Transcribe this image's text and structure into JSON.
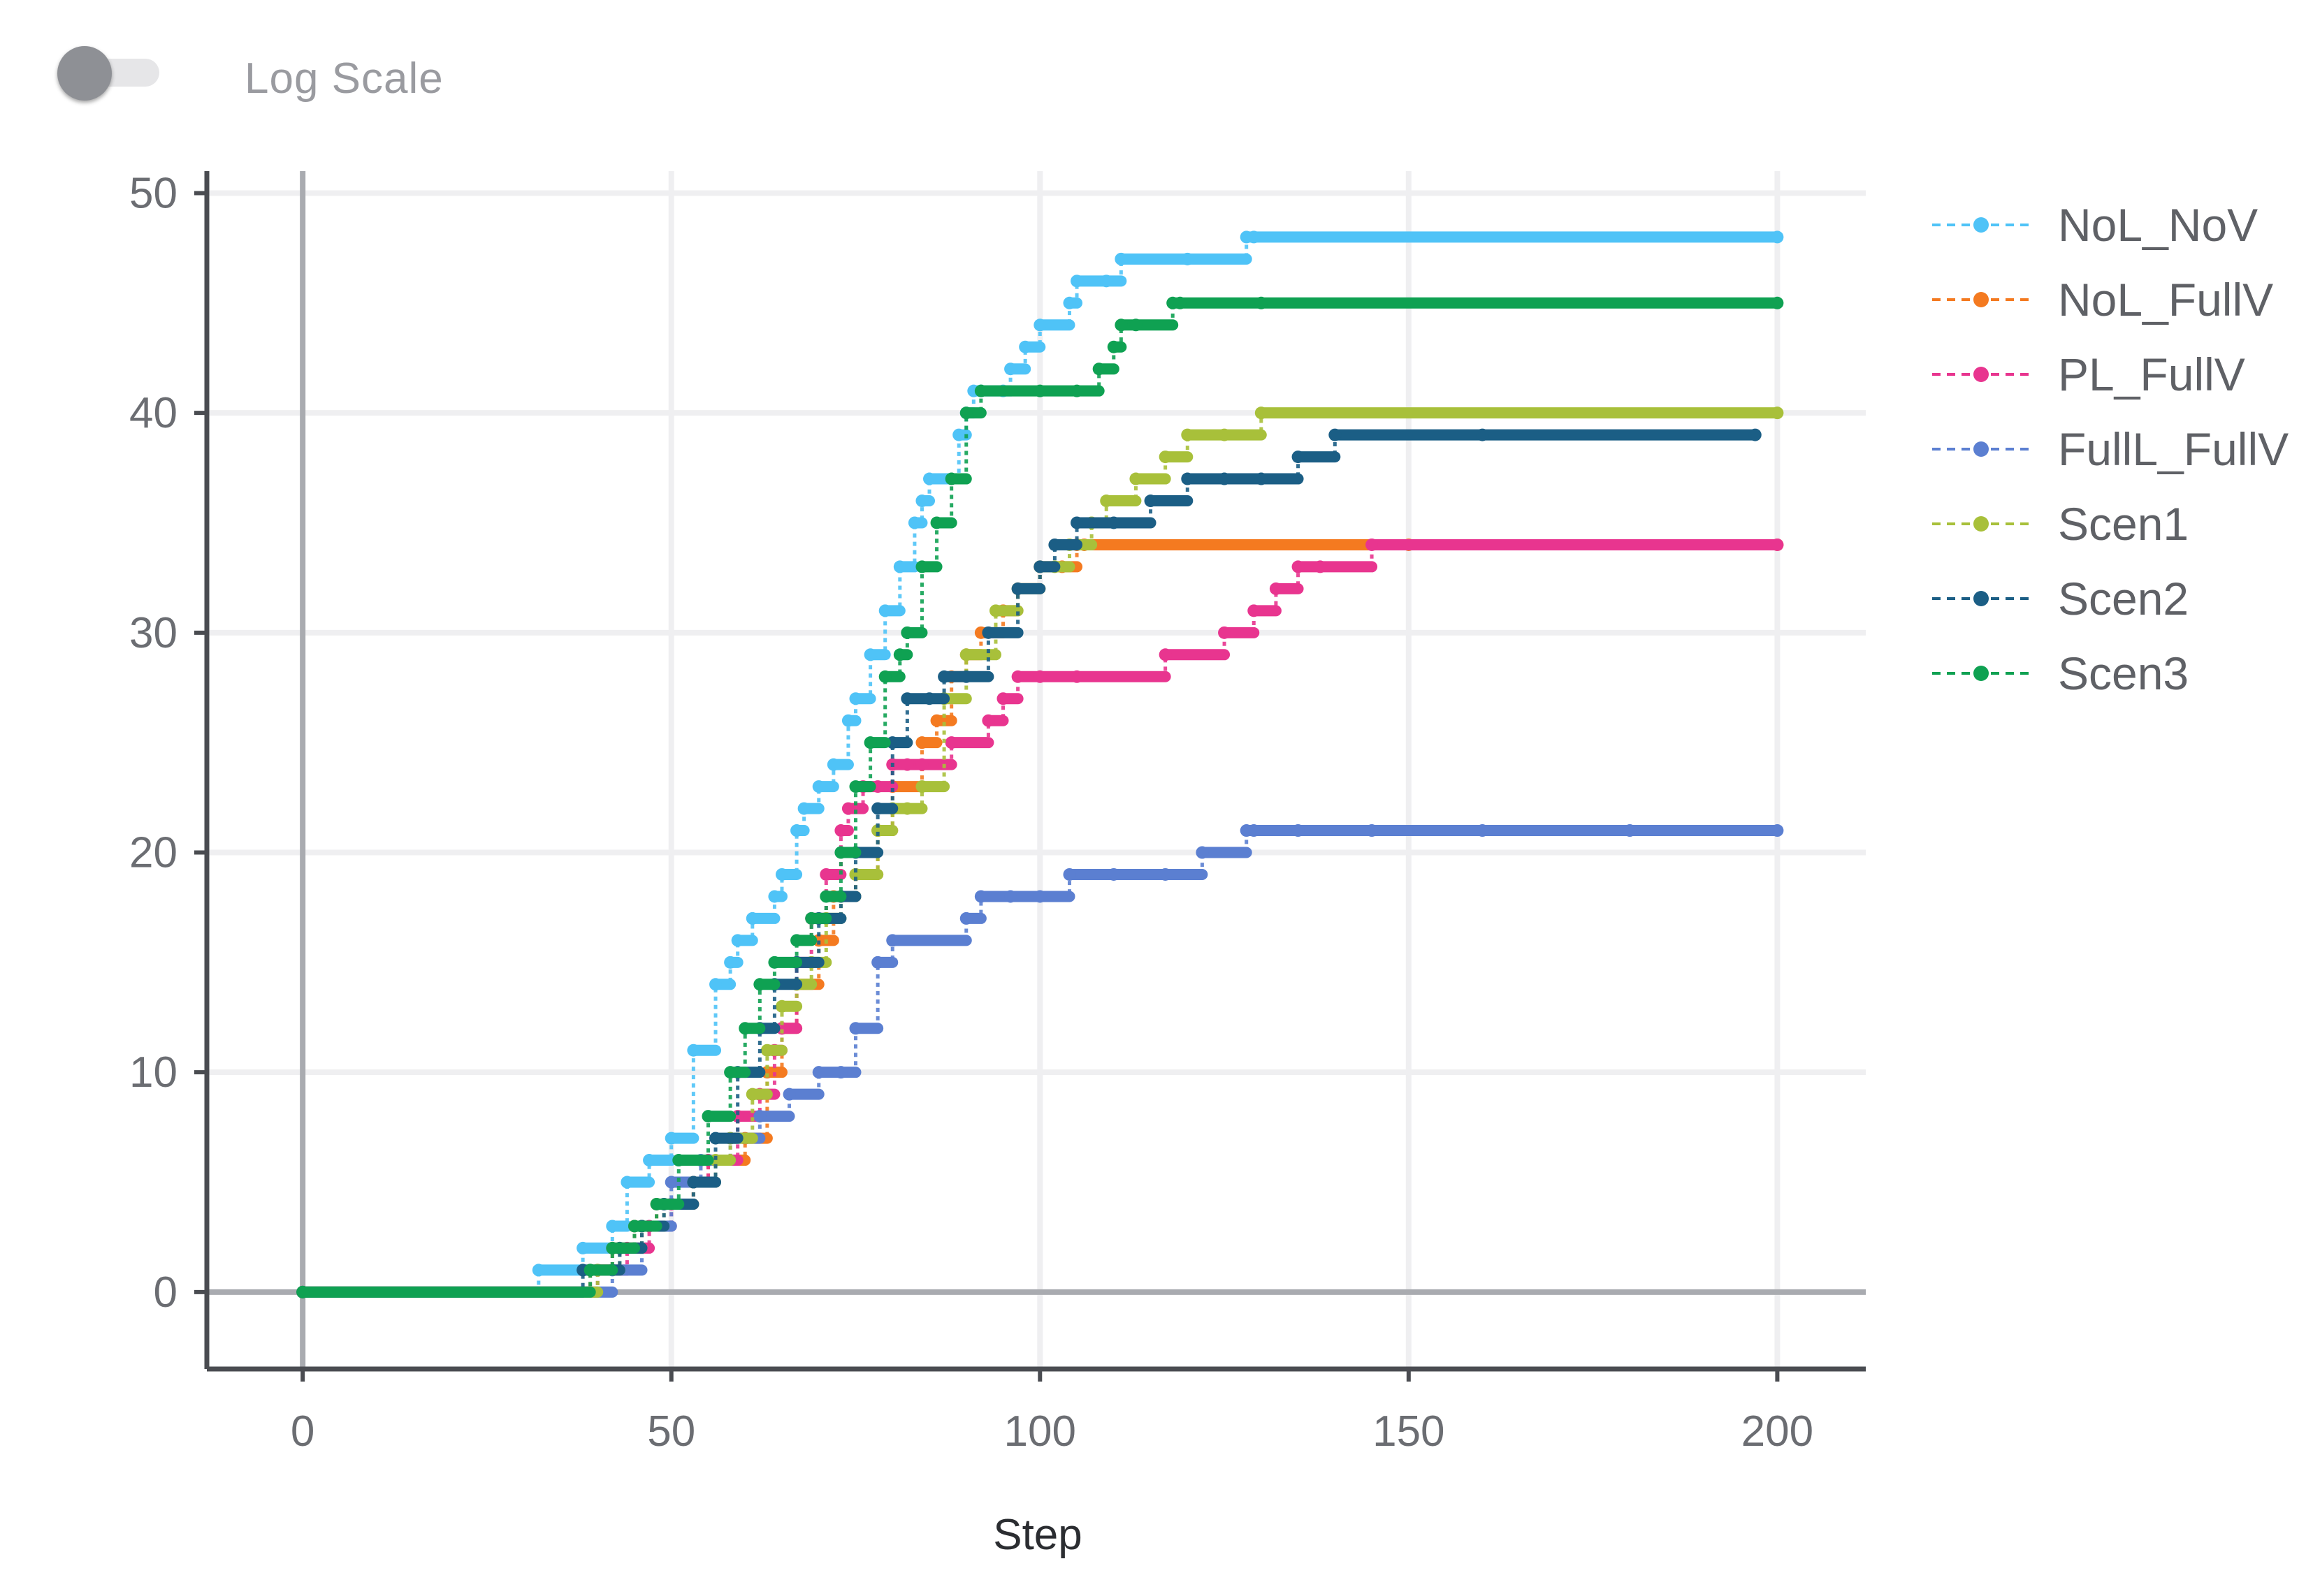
{
  "toggle": {
    "label": "Log Scale",
    "enabled": false
  },
  "chart_data": {
    "type": "line",
    "xlabel": "Step",
    "ylabel": "",
    "xlim": [
      -13,
      212
    ],
    "ylim": [
      -3.5,
      51
    ],
    "xticks": [
      0,
      50,
      100,
      150,
      200
    ],
    "yticks": [
      0,
      10,
      20,
      30,
      40,
      50
    ],
    "grid": true,
    "step": true,
    "legend_position": "right",
    "colors": {
      "grid": "#efeff1",
      "zero_line": "#a9abb0",
      "axis": "#4a4c51"
    },
    "series": [
      {
        "name": "NoL_NoV",
        "color": "#4fc3f7",
        "x": [
          0,
          32,
          38,
          42,
          44,
          47,
          50,
          53,
          56,
          58,
          59,
          61,
          64,
          65,
          67,
          68,
          70,
          72,
          74,
          75,
          77,
          79,
          81,
          83,
          84,
          85,
          89,
          90,
          91,
          92,
          95,
          96,
          98,
          100,
          104,
          105,
          109,
          111,
          120,
          128,
          129,
          200
        ],
        "y": [
          0,
          1,
          2,
          3,
          5,
          6,
          7,
          11,
          14,
          15,
          16,
          17,
          18,
          19,
          21,
          22,
          23,
          24,
          26,
          27,
          29,
          31,
          33,
          35,
          36,
          37,
          39,
          40,
          41,
          41,
          41,
          42,
          43,
          44,
          45,
          46,
          46,
          47,
          47,
          48,
          48,
          48
        ]
      },
      {
        "name": "NoL_FullV",
        "color": "#f47a20",
        "x": [
          0,
          39,
          42,
          45,
          48,
          53,
          55,
          60,
          63,
          65,
          67,
          70,
          72,
          75,
          78,
          80,
          84,
          86,
          88,
          90,
          92,
          95,
          97,
          100,
          103,
          105,
          106,
          150,
          200
        ],
        "y": [
          0,
          1,
          2,
          3,
          4,
          5,
          6,
          7,
          10,
          12,
          14,
          16,
          18,
          19,
          21,
          23,
          25,
          26,
          28,
          29,
          30,
          31,
          32,
          33,
          33,
          34,
          34,
          34,
          34
        ]
      },
      {
        "name": "PL_FullV",
        "color": "#e8358f",
        "x": [
          0,
          40,
          44,
          47,
          50,
          53,
          55,
          59,
          62,
          64,
          65,
          67,
          69,
          71,
          73,
          74,
          76,
          78,
          80,
          82,
          84,
          88,
          93,
          95,
          97,
          100,
          105,
          117,
          125,
          129,
          132,
          135,
          138,
          145,
          200
        ],
        "y": [
          0,
          1,
          2,
          3,
          4,
          5,
          6,
          8,
          9,
          11,
          12,
          15,
          17,
          19,
          21,
          22,
          23,
          23,
          24,
          24,
          24,
          25,
          26,
          27,
          28,
          28,
          28,
          29,
          30,
          31,
          32,
          33,
          33,
          34,
          34
        ]
      },
      {
        "name": "FullL_FullV",
        "color": "#5b7fd1",
        "x": [
          0,
          42,
          46,
          50,
          54,
          58,
          62,
          66,
          70,
          73,
          75,
          78,
          80,
          90,
          92,
          96,
          100,
          104,
          110,
          117,
          122,
          128,
          129,
          135,
          145,
          160,
          180,
          200
        ],
        "y": [
          0,
          1,
          3,
          5,
          6,
          7,
          8,
          9,
          10,
          10,
          12,
          15,
          16,
          17,
          18,
          18,
          18,
          19,
          19,
          19,
          20,
          21,
          21,
          21,
          21,
          21,
          21,
          21
        ]
      },
      {
        "name": "Scen1",
        "color": "#a8c03a",
        "x": [
          0,
          40,
          43,
          46,
          49,
          53,
          56,
          58,
          61,
          63,
          65,
          67,
          69,
          71,
          73,
          75,
          78,
          80,
          82,
          84,
          87,
          90,
          94,
          97,
          100,
          102,
          104,
          107,
          109,
          113,
          117,
          120,
          125,
          130,
          200
        ],
        "y": [
          0,
          1,
          2,
          3,
          4,
          5,
          6,
          7,
          9,
          11,
          13,
          14,
          15,
          17,
          18,
          19,
          21,
          22,
          22,
          23,
          27,
          29,
          31,
          32,
          33,
          33,
          34,
          35,
          36,
          37,
          38,
          39,
          39,
          40,
          40
        ]
      },
      {
        "name": "Scen2",
        "color": "#1b5e85",
        "x": [
          0,
          38,
          43,
          46,
          49,
          53,
          56,
          59,
          62,
          64,
          67,
          70,
          73,
          75,
          78,
          80,
          82,
          85,
          87,
          90,
          93,
          97,
          100,
          102,
          105,
          110,
          115,
          120,
          125,
          130,
          135,
          140,
          160,
          197
        ],
        "y": [
          0,
          1,
          2,
          3,
          4,
          5,
          7,
          10,
          12,
          14,
          15,
          17,
          18,
          20,
          22,
          25,
          27,
          27,
          28,
          28,
          30,
          32,
          33,
          34,
          35,
          35,
          36,
          37,
          37,
          37,
          38,
          39,
          39,
          39
        ]
      },
      {
        "name": "Scen3",
        "color": "#0fa152",
        "x": [
          0,
          39,
          42,
          45,
          48,
          51,
          55,
          58,
          60,
          62,
          64,
          67,
          69,
          71,
          73,
          75,
          77,
          79,
          81,
          82,
          84,
          86,
          88,
          90,
          92,
          100,
          105,
          108,
          110,
          111,
          113,
          118,
          119,
          130,
          200
        ],
        "y": [
          0,
          1,
          2,
          3,
          4,
          6,
          8,
          10,
          12,
          14,
          15,
          16,
          17,
          18,
          20,
          23,
          25,
          28,
          29,
          30,
          33,
          35,
          37,
          40,
          41,
          41,
          41,
          42,
          43,
          44,
          44,
          45,
          45,
          45,
          45
        ]
      }
    ]
  }
}
